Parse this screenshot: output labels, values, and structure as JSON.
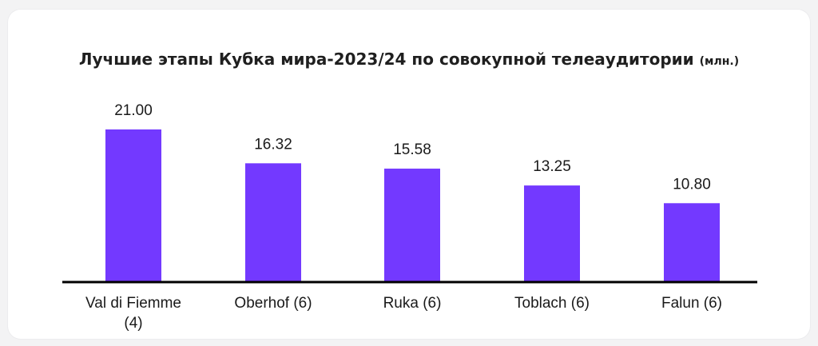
{
  "chart_data": {
    "type": "bar",
    "title": "Лучшие этапы Кубка мира-2023/24 по совокупной телеаудитории",
    "title_unit": "(млн.)",
    "categories": [
      [
        "Val di Fiemme",
        "(4)"
      ],
      [
        "Oberhof (6)"
      ],
      [
        "Ruka (6)"
      ],
      [
        "Toblach (6)"
      ],
      [
        "Falun (6)"
      ]
    ],
    "values": [
      21.0,
      16.32,
      15.58,
      13.25,
      10.8
    ],
    "value_labels": [
      "21.00",
      "16.32",
      "15.58",
      "13.25",
      "10.80"
    ],
    "ylim": [
      0,
      21
    ],
    "grid": false,
    "colors": {
      "bar": "#7339ff",
      "axis": "#000000"
    }
  }
}
